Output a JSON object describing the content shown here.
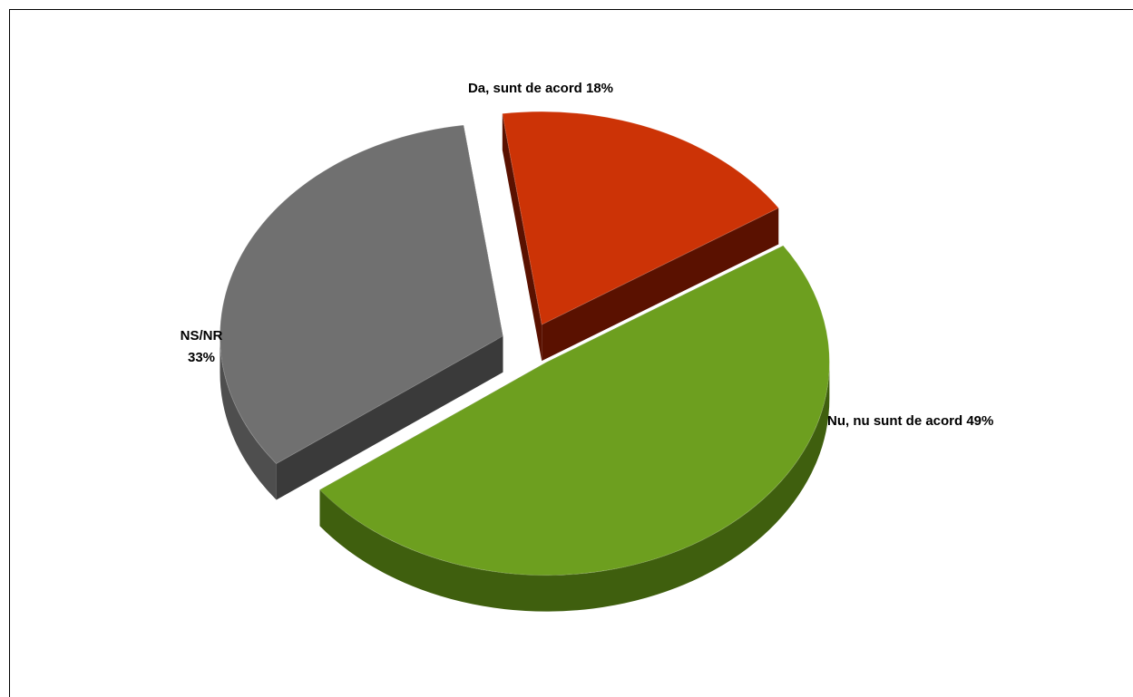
{
  "chart_data": {
    "type": "pie",
    "title": "",
    "slices": [
      {
        "label": "Da, sunt de acord",
        "value": 18,
        "color": "#cc3306",
        "side_color": "#7a1a02",
        "dark_color": "#5a1100"
      },
      {
        "label": "Nu, nu sunt de acord",
        "value": 49,
        "color": "#6d9f1f",
        "side_color": "#3f5f0e",
        "dark_color": "#2e4708"
      },
      {
        "label": "NS/NR",
        "value": 33,
        "color": "#707070",
        "side_color": "#4e4e4e",
        "dark_color": "#3a3a3a"
      }
    ],
    "labels": {
      "da": "Da, sunt de acord 18%",
      "nu": "Nu, nu sunt de acord 49%",
      "ns_line1": "NS/NR",
      "ns_line2": "33%"
    },
    "legend": "none",
    "style": "exploded-3d"
  }
}
